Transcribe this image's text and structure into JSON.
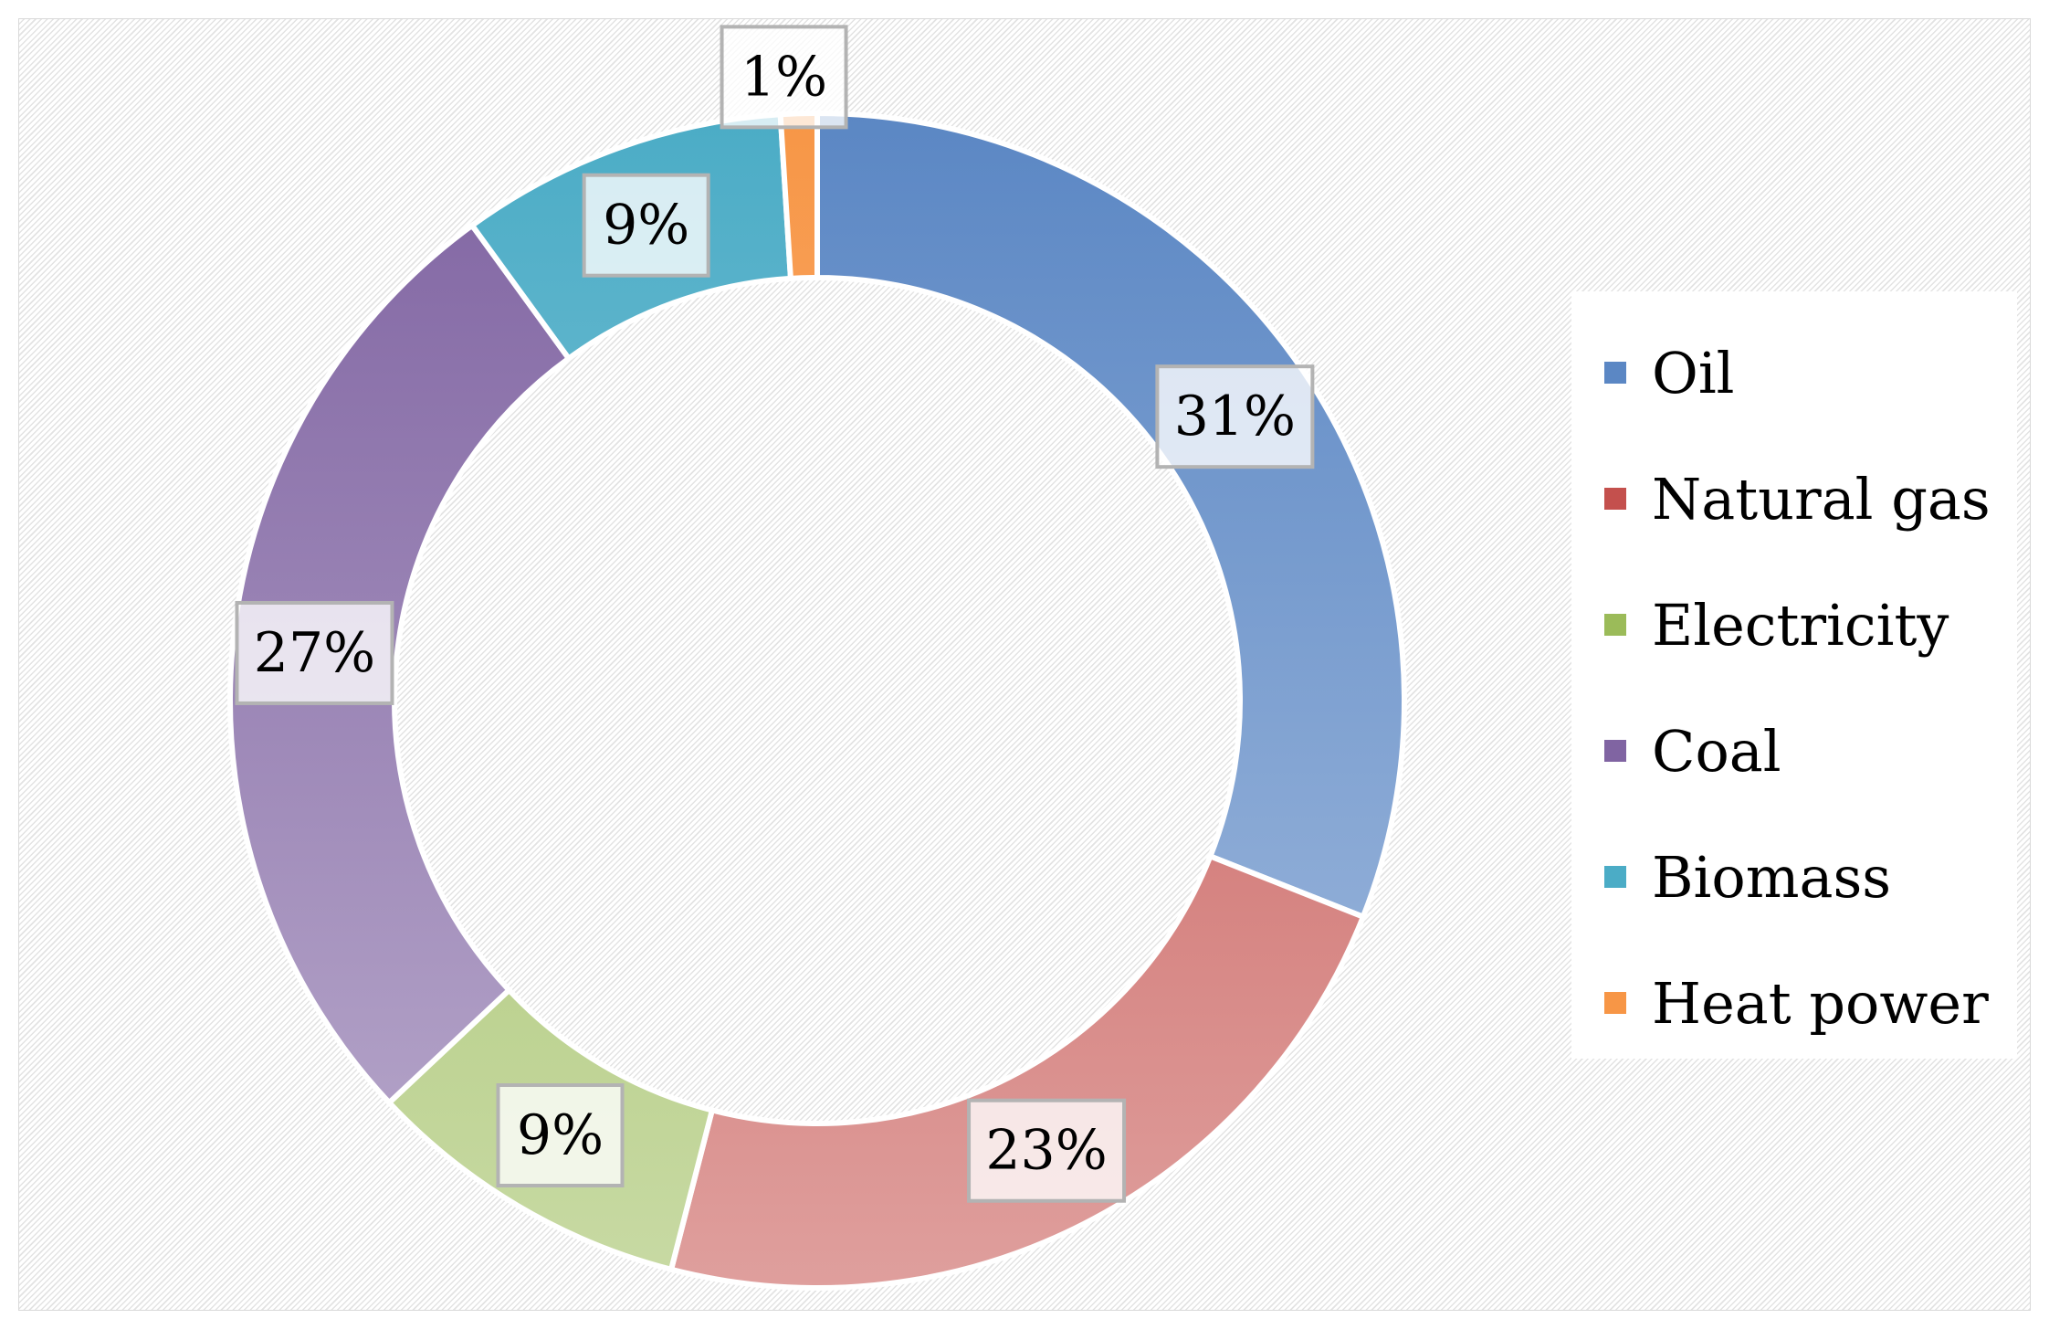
{
  "chart_data": {
    "type": "pie",
    "donut": true,
    "title": "",
    "categories": [
      "Oil",
      "Natural gas",
      "Electricity",
      "Coal",
      "Biomass",
      "Heat power"
    ],
    "values": [
      31,
      23,
      9,
      27,
      9,
      1
    ],
    "data_labels": [
      "31%",
      "23%",
      "9%",
      "27%",
      "9%",
      "1%"
    ],
    "colors": [
      "#5B87C4",
      "#C4504D",
      "#9BBB59",
      "#8064A2",
      "#4BACC6",
      "#F79646"
    ],
    "legend_position": "right",
    "unit": "%"
  }
}
